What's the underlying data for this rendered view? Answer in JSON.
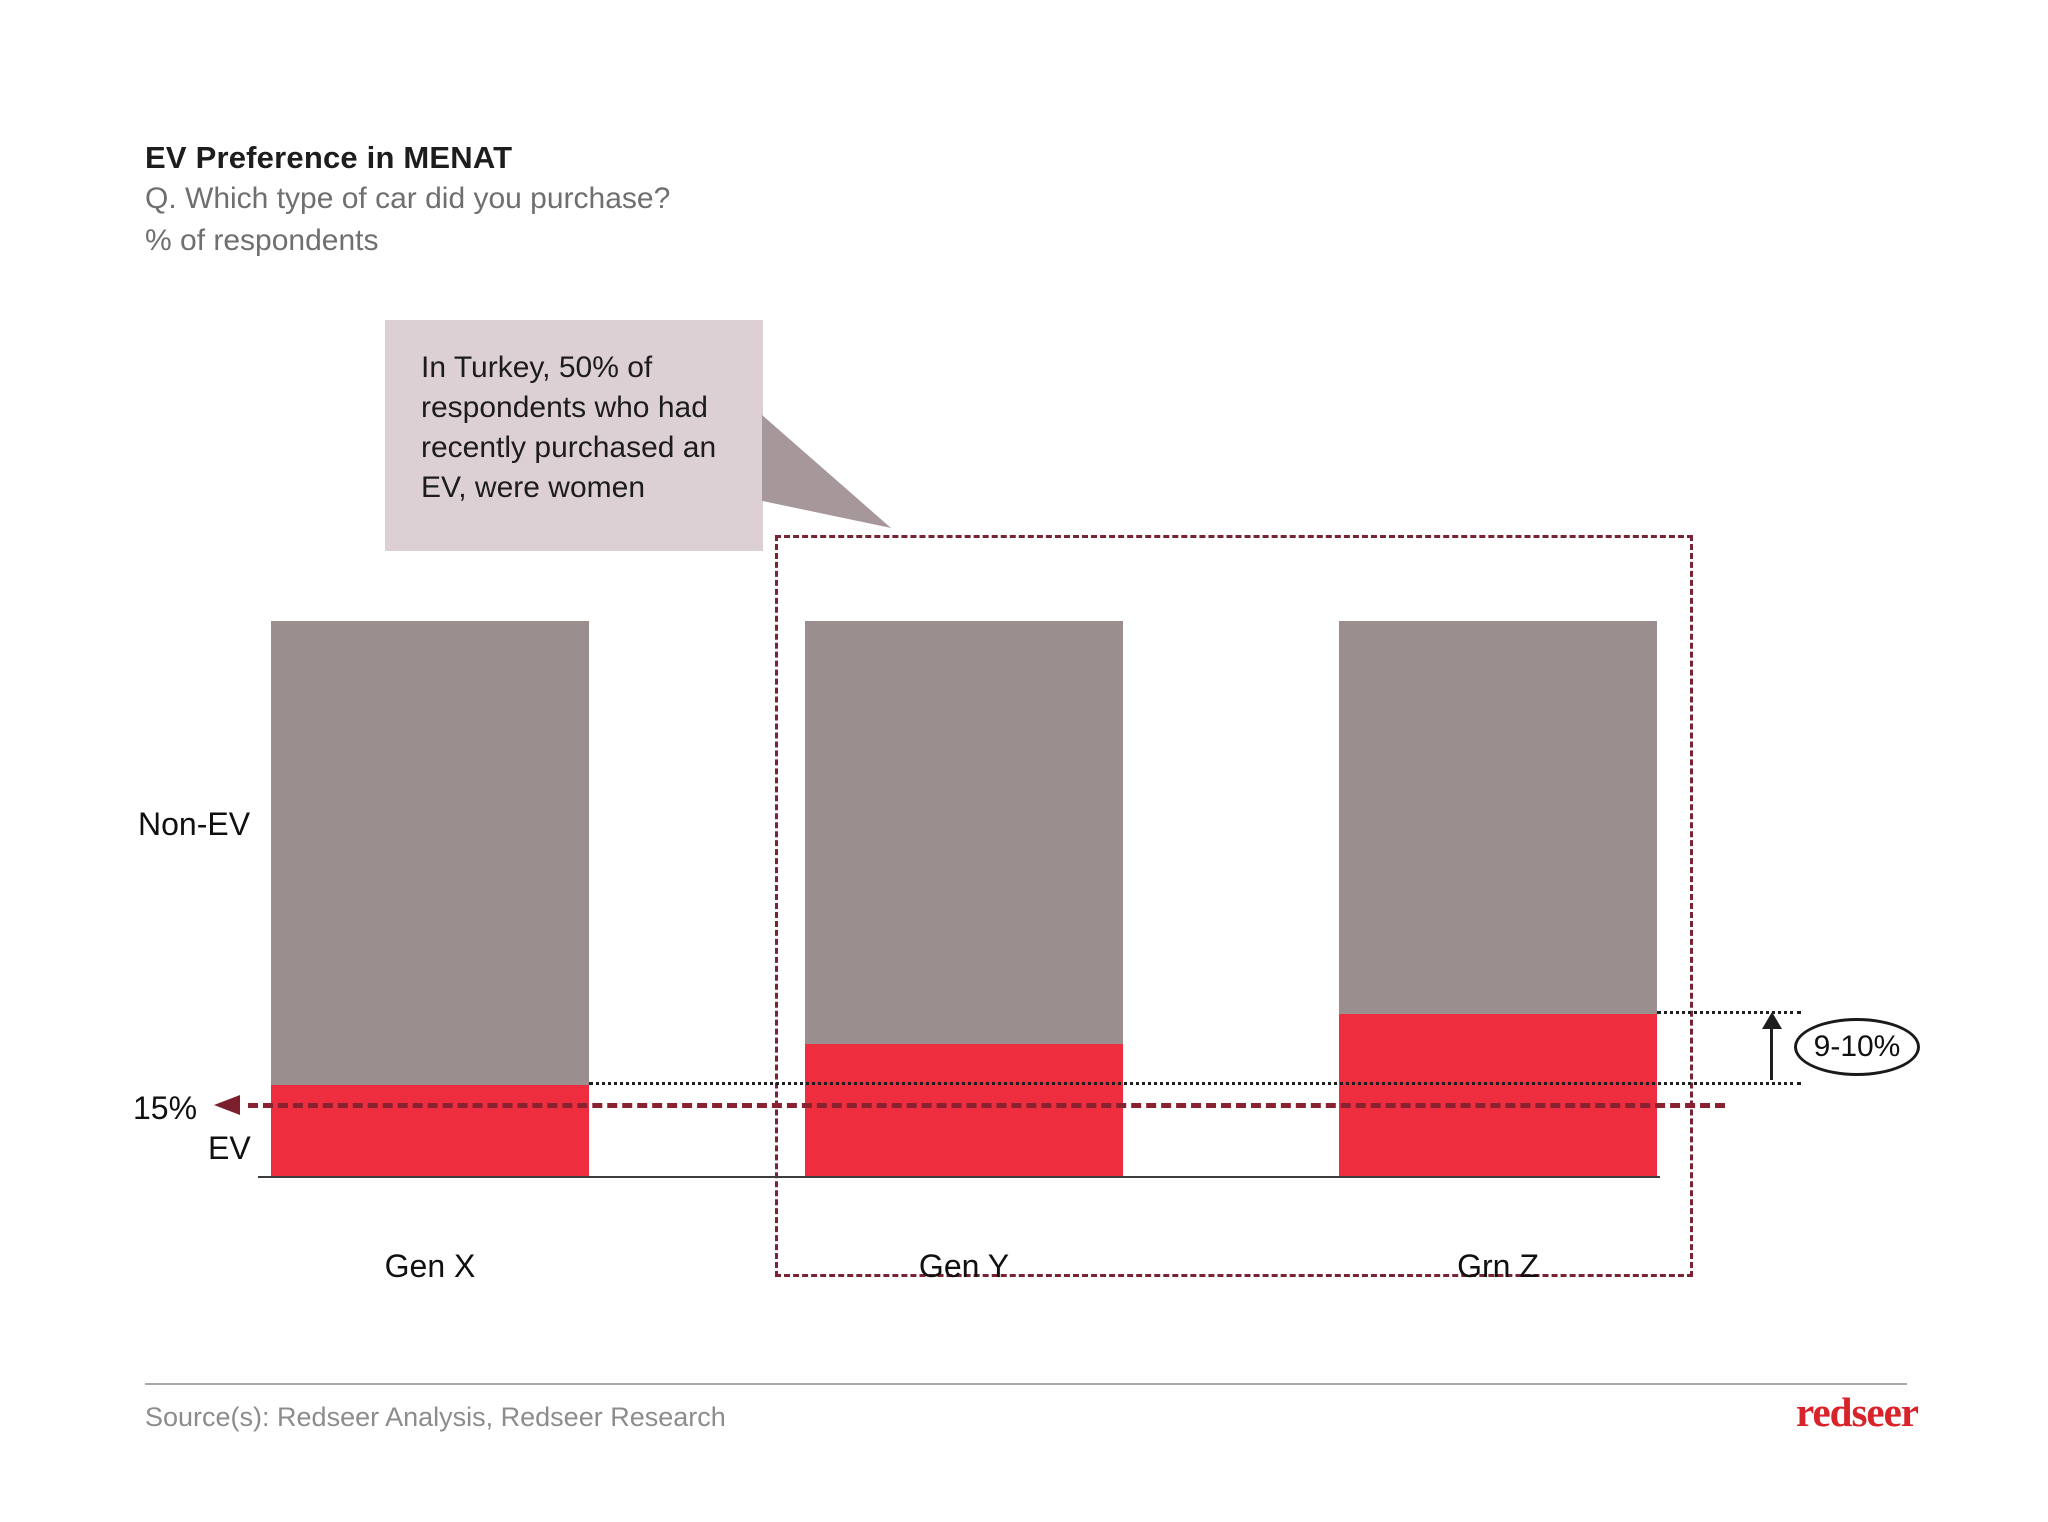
{
  "header": {
    "title": "EV Preference in MENAT",
    "question": "Q. Which type of car did you purchase?",
    "unit": "% of respondents"
  },
  "callout": {
    "text": "In Turkey, 50% of respondents who had recently purchased an EV, were women"
  },
  "chart_data": {
    "type": "bar",
    "stacked": true,
    "title": "EV Preference in MENAT",
    "subtitle": "Q. Which type of car did you purchase?",
    "ylabel": "% of respondents",
    "categories": [
      "Gen X",
      "Gen Y",
      "Grn Z"
    ],
    "series": [
      {
        "name": "EV",
        "color": "#ee2d3f",
        "values_pct": [
          15,
          22,
          24.5
        ],
        "drawn_pct_of_bar_height": [
          16.7,
          24.1,
          29.4
        ]
      },
      {
        "name": "Non-EV",
        "color": "#9b8e8f",
        "values_pct": [
          85,
          78,
          75.5
        ]
      }
    ],
    "annotations": {
      "gen_x_ev_label": "15%",
      "difference_label": "9-10%",
      "difference_note": "Grn Z EV share is 9-10% higher than Gen X",
      "highlighted_categories": [
        "Gen Y",
        "Grn Z"
      ]
    },
    "legend_position": "left-of-bars",
    "grid": false
  },
  "labels": {
    "non_ev": "Non-EV",
    "ev": "EV",
    "ev_value": "15%",
    "difference": "9-10%"
  },
  "colors": {
    "bar_gray": "#9b8e8f",
    "bar_red": "#ee2d3f",
    "callout_bg": "#ddd0d5",
    "callout_tail": "#a6979b",
    "dash_maroon": "#7a2433",
    "logo_red": "#d8232a"
  },
  "footer": {
    "source": "Source(s): Redseer Analysis, Redseer Research",
    "logo": "redseer"
  }
}
